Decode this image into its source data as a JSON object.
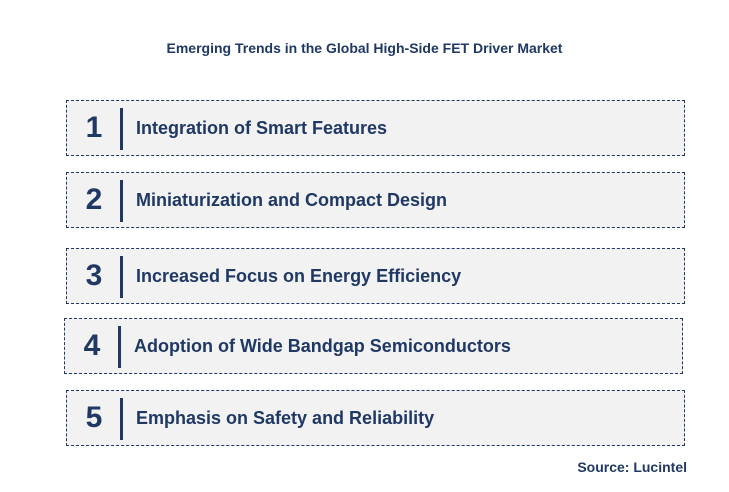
{
  "title": "Emerging Trends in the Global High-Side FET Driver Market",
  "trends": [
    {
      "number": "1",
      "label": "Integration of Smart Features"
    },
    {
      "number": "2",
      "label": "Miniaturization and Compact Design"
    },
    {
      "number": "3",
      "label": "Increased Focus on Energy Efficiency"
    },
    {
      "number": "4",
      "label": "Adoption of Wide Bandgap Semiconductors"
    },
    {
      "number": "5",
      "label": "Emphasis on Safety and Reliability"
    }
  ],
  "source": "Source: Lucintel",
  "colors": {
    "text": "#1f3864",
    "box_fill": "#f2f2f2"
  }
}
